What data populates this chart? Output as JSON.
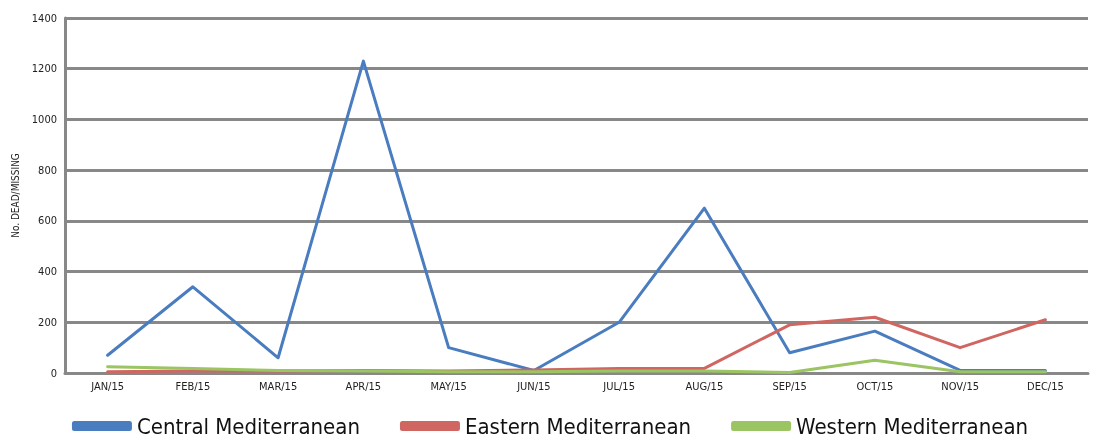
{
  "chart_data": {
    "type": "line",
    "ylabel": "No. DEAD/MISSING",
    "categories": [
      "JAN/15",
      "FEB/15",
      "MAR/15",
      "APR/15",
      "MAY/15",
      "JUN/15",
      "JUL/15",
      "AUG/15",
      "SEP/15",
      "OCT/15",
      "NOV/15",
      "DEC/15"
    ],
    "series": [
      {
        "name": "Central Mediterranean",
        "color": "#4a7cc0",
        "values": [
          70,
          340,
          60,
          1230,
          100,
          10,
          200,
          650,
          80,
          165,
          10,
          10
        ]
      },
      {
        "name": "Eastern Mediterranean",
        "color": "#d06661",
        "values": [
          5,
          8,
          8,
          10,
          8,
          12,
          18,
          18,
          190,
          220,
          100,
          210
        ]
      },
      {
        "name": "Western Mediterranean",
        "color": "#9bc462",
        "values": [
          25,
          18,
          10,
          8,
          5,
          5,
          8,
          8,
          2,
          50,
          5,
          5
        ]
      }
    ],
    "ylim": [
      0,
      1400
    ],
    "yticks": [
      0,
      200,
      400,
      600,
      800,
      1000,
      1200,
      1400
    ],
    "grid": "y",
    "legend": "bottom",
    "marker": "none",
    "line_style": "solid"
  }
}
